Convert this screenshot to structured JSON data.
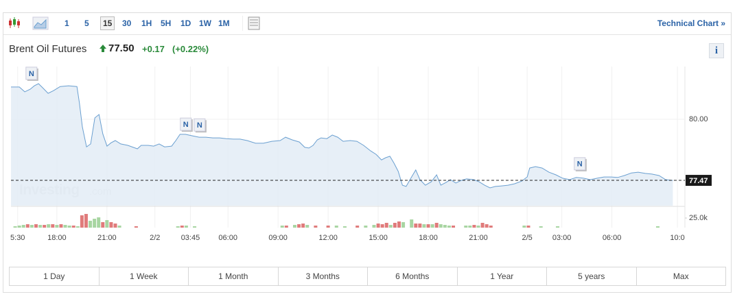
{
  "toolbar": {
    "intervals": [
      "1",
      "5",
      "15",
      "30",
      "1H",
      "5H",
      "1D",
      "1W",
      "1M"
    ],
    "active": 2,
    "link": "Technical Chart »"
  },
  "quote": {
    "name": "Brent Oil Futures",
    "price": "77.50",
    "change": "+0.17",
    "change_pct": "(+0.22%)",
    "info": "i"
  },
  "chart_data": {
    "type": "line",
    "color": "#6a9fd0",
    "fill": "#e4edf6",
    "watermark": {
      "brand": "Investing",
      "suffix": ".com"
    },
    "x": [
      0,
      2,
      3.3,
      4.6,
      5.6,
      6.6,
      7.6,
      8.9,
      10.2,
      11.8,
      13.8,
      15.8,
      16.4,
      17.1,
      18.1,
      19.1,
      20.1,
      21.1,
      22,
      23,
      24,
      25,
      26.3,
      28,
      29.3,
      30.3,
      31.2,
      32.9,
      34.2,
      35.5,
      36.8,
      38.5,
      39.5,
      40.5,
      41.8,
      43.4,
      45.1,
      46.7,
      48.4,
      50,
      51.6,
      53.3,
      54.9,
      56.6,
      58.6,
      60.5,
      62.5,
      64.5,
      65.8,
      67.4,
      69.1,
      70.4,
      71.4,
      72.4,
      73.4,
      74.3,
      75.7,
      77,
      78.3,
      79.6,
      81.3,
      82.9,
      84.5,
      86.2,
      87.5,
      88.8,
      89.8,
      90.8,
      91.8,
      92.8,
      93.8,
      94.7,
      96.1,
      97,
      98,
      99.3,
      100.7,
      102,
      103,
      104.3,
      105.3,
      106.6,
      107.9,
      109.2,
      110.9,
      112.2,
      113.5,
      114.8,
      116.1,
      117.4,
      119.1,
      120.7,
      122.4,
      123.7,
      124.3,
      125.7,
      127.3,
      128.9,
      130.6,
      132.2,
      133.9,
      135.5,
      137.2,
      138.8,
      140.5,
      142.1,
      143.8,
      145.4,
      147,
      148.7,
      150.3,
      152,
      153.6,
      155.3,
      156.9,
      158.6
    ],
    "values": [
      81.34,
      81.34,
      81.14,
      81.25,
      81.39,
      81.48,
      81.31,
      81.08,
      81.19,
      81.36,
      81.39,
      81.36,
      80.68,
      79.69,
      78.86,
      78.98,
      80.06,
      80.2,
      79.4,
      78.89,
      79.03,
      79.12,
      78.98,
      78.92,
      78.84,
      78.78,
      78.92,
      78.92,
      78.89,
      78.98,
      78.86,
      78.89,
      79.12,
      79.38,
      79.38,
      79.32,
      79.26,
      79.26,
      79.23,
      79.23,
      79.2,
      79.18,
      79.18,
      79.12,
      79.01,
      79.01,
      79.09,
      79.12,
      79.26,
      79.15,
      79.06,
      78.84,
      78.81,
      78.92,
      79.15,
      79.23,
      79.2,
      79.35,
      79.26,
      79.09,
      79.12,
      79.09,
      78.92,
      78.69,
      78.55,
      78.32,
      78.41,
      78.47,
      78.18,
      77.84,
      77.27,
      77.22,
      77.64,
      77.9,
      77.5,
      77.27,
      77.41,
      77.7,
      77.27,
      77.39,
      77.5,
      77.36,
      77.47,
      77.53,
      77.5,
      77.41,
      77.27,
      77.16,
      77.22,
      77.24,
      77.27,
      77.33,
      77.44,
      77.61,
      77.98,
      78.04,
      77.98,
      77.81,
      77.7,
      77.56,
      77.5,
      77.59,
      77.56,
      77.5,
      77.56,
      77.61,
      77.61,
      77.59,
      77.67,
      77.78,
      77.81,
      77.76,
      77.73,
      77.67,
      77.5,
      77.47
    ],
    "xlim": [
      0,
      161.5
    ],
    "ylim": [
      76.42,
      82.19
    ],
    "xticks": [
      {
        "value": 1.6,
        "label": "5:30"
      },
      {
        "value": 11,
        "label": "18:00"
      },
      {
        "value": 23,
        "label": "21:00"
      },
      {
        "value": 34.5,
        "label": "2/2"
      },
      {
        "value": 43,
        "label": "03:45"
      },
      {
        "value": 52,
        "label": "06:00"
      },
      {
        "value": 64,
        "label": "09:00"
      },
      {
        "value": 76,
        "label": "12:00"
      },
      {
        "value": 88,
        "label": "15:00"
      },
      {
        "value": 100,
        "label": "18:00"
      },
      {
        "value": 112,
        "label": "21:00"
      },
      {
        "value": 123.7,
        "label": "2/5"
      },
      {
        "value": 132,
        "label": "03:00"
      },
      {
        "value": 144,
        "label": "06:00"
      },
      {
        "value": 159.7,
        "label": "10:0"
      }
    ],
    "yticks": [
      {
        "value": 80,
        "label": "80.00"
      }
    ],
    "last_value": 77.47,
    "markers": [
      {
        "x": 4.9,
        "y": 81.88,
        "label": "N"
      },
      {
        "x": 41.9,
        "y": 79.77,
        "label": "N"
      },
      {
        "x": 45.2,
        "y": 79.74,
        "label": "N"
      },
      {
        "x": 136.3,
        "y": 78.13,
        "label": "N"
      }
    ],
    "volume": {
      "x": [
        1,
        2,
        3,
        4,
        5,
        6,
        7,
        8,
        9,
        10,
        11,
        12,
        13,
        14,
        15,
        16,
        17,
        18,
        19,
        20,
        21,
        22,
        23,
        24,
        25,
        26,
        30,
        40,
        41,
        42,
        44,
        65,
        66,
        68,
        69,
        70,
        71,
        73,
        76,
        78,
        80,
        83,
        85,
        87,
        88,
        89,
        90,
        91,
        92,
        93,
        94,
        96,
        97,
        98,
        99,
        100,
        101,
        102,
        103,
        104,
        105,
        106,
        109,
        110,
        111,
        112,
        113,
        114,
        115,
        123,
        124,
        127,
        131,
        155
      ],
      "values": [
        3600,
        5400,
        7100,
        8900,
        7100,
        8900,
        7100,
        7100,
        8900,
        8900,
        7100,
        8900,
        7100,
        5400,
        5400,
        3600,
        32100,
        35700,
        17900,
        23200,
        26800,
        14300,
        19600,
        14300,
        10700,
        5400,
        3600,
        3600,
        5400,
        5400,
        3600,
        5400,
        5400,
        7100,
        8900,
        10700,
        7100,
        5400,
        5400,
        5400,
        3600,
        5400,
        5400,
        7100,
        10700,
        8900,
        12500,
        7100,
        12500,
        16100,
        14300,
        21400,
        10700,
        10700,
        8900,
        8900,
        8900,
        12500,
        8900,
        7100,
        5400,
        5400,
        5400,
        5400,
        7100,
        5400,
        12500,
        8900,
        5400,
        5400,
        5400,
        3600,
        3600,
        3600
      ],
      "colors": [
        "#a8d5a2",
        "#a8d5a2",
        "#a8d5a2",
        "#e07b7b",
        "#a8d5a2",
        "#e07b7b",
        "#a8d5a2",
        "#e07b7b",
        "#a8d5a2",
        "#e07b7b",
        "#a8d5a2",
        "#e07b7b",
        "#a8d5a2",
        "#a8d5a2",
        "#e07b7b",
        "#a8d5a2",
        "#e07b7b",
        "#e07b7b",
        "#a8d5a2",
        "#a8d5a2",
        "#a8d5a2",
        "#e07b7b",
        "#a8d5a2",
        "#e07b7b",
        "#e07b7b",
        "#a8d5a2",
        "#e07b7b",
        "#a8d5a2",
        "#e07b7b",
        "#a8d5a2",
        "#a8d5a2",
        "#a8d5a2",
        "#e07b7b",
        "#a8d5a2",
        "#e07b7b",
        "#e07b7b",
        "#a8d5a2",
        "#e07b7b",
        "#e07b7b",
        "#a8d5a2",
        "#a8d5a2",
        "#e07b7b",
        "#a8d5a2",
        "#a8d5a2",
        "#e07b7b",
        "#e07b7b",
        "#e07b7b",
        "#a8d5a2",
        "#e07b7b",
        "#e07b7b",
        "#a8d5a2",
        "#a8d5a2",
        "#e07b7b",
        "#e07b7b",
        "#a8d5a2",
        "#e07b7b",
        "#a8d5a2",
        "#e07b7b",
        "#a8d5a2",
        "#a8d5a2",
        "#a8d5a2",
        "#e07b7b",
        "#a8d5a2",
        "#a8d5a2",
        "#e07b7b",
        "#a8d5a2",
        "#e07b7b",
        "#e07b7b",
        "#e07b7b",
        "#a8d5a2",
        "#e07b7b",
        "#a8d5a2",
        "#a8d5a2",
        "#a8d5a2"
      ],
      "ylim": [
        0,
        53600
      ],
      "yticks": [
        {
          "value": 25000,
          "label": "25.0k"
        }
      ]
    }
  },
  "ranges": [
    "1 Day",
    "1 Week",
    "1 Month",
    "3 Months",
    "6 Months",
    "1 Year",
    "5 years",
    "Max"
  ]
}
